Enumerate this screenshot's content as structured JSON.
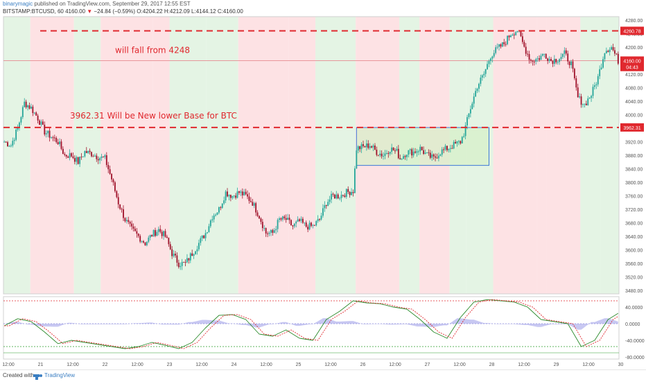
{
  "header": {
    "author": "binarymagic",
    "published": " published on TradingView.com, September 29, 2017 12:55 EST",
    "symbol": "BITSTAMP:BTCUSD, 60",
    "last": "4160.00",
    "change": "−24.84 (−0.59%)",
    "open": "O:4204.22",
    "high": "H:4212.09",
    "low": "L:4144.12",
    "close": "C:4160.00"
  },
  "footer": {
    "created": "Created with",
    "brand": "TradingView"
  },
  "colors": {
    "up": "#26a69a",
    "down": "#a0142c",
    "bg_green": "#e4f4e4",
    "bg_red": "#fde2e4",
    "annotation": "#e0282e",
    "box_fill": "#d6f0c8",
    "box_border": "#3b77d6"
  },
  "chart_data": [
    {
      "type": "candlestick",
      "title": "BITSTAMP:BTCUSD, 60",
      "x_tick_labels": [
        "12:00",
        "21",
        "12:00",
        "22",
        "12:00",
        "23",
        "12:00",
        "24",
        "12:00",
        "25",
        "12:00",
        "26",
        "12:00",
        "27",
        "12:00",
        "28",
        "12:00",
        "29",
        "12:00",
        "30"
      ],
      "y_tick_labels": [
        "3480.00",
        "3520.00",
        "3560.00",
        "3600.00",
        "3640.00",
        "3680.00",
        "3720.00",
        "3760.00",
        "3800.00",
        "3840.00",
        "3880.00",
        "3920.00",
        "3960.00",
        "4000.00",
        "4040.00",
        "4080.00",
        "4120.00",
        "4160.00",
        "4200.00",
        "4240.00",
        "4280.00"
      ],
      "ylim": [
        3470,
        4290
      ],
      "close_path": [
        [
          0,
          3920
        ],
        [
          4,
          3910
        ],
        [
          8,
          3960
        ],
        [
          12,
          4035
        ],
        [
          16,
          4020
        ],
        [
          20,
          3990
        ],
        [
          24,
          3950
        ],
        [
          28,
          3935
        ],
        [
          32,
          3920
        ],
        [
          36,
          3880
        ],
        [
          40,
          3880
        ],
        [
          44,
          3860
        ],
        [
          48,
          3890
        ],
        [
          52,
          3885
        ],
        [
          56,
          3875
        ],
        [
          60,
          3870
        ],
        [
          64,
          3810
        ],
        [
          68,
          3740
        ],
        [
          72,
          3690
        ],
        [
          76,
          3660
        ],
        [
          80,
          3640
        ],
        [
          84,
          3620
        ],
        [
          88,
          3645
        ],
        [
          92,
          3660
        ],
        [
          96,
          3640
        ],
        [
          100,
          3590
        ],
        [
          104,
          3560
        ],
        [
          108,
          3560
        ],
        [
          112,
          3590
        ],
        [
          116,
          3620
        ],
        [
          120,
          3650
        ],
        [
          124,
          3700
        ],
        [
          128,
          3720
        ],
        [
          132,
          3770
        ],
        [
          136,
          3760
        ],
        [
          140,
          3770
        ],
        [
          144,
          3760
        ],
        [
          148,
          3740
        ],
        [
          152,
          3700
        ],
        [
          156,
          3650
        ],
        [
          160,
          3650
        ],
        [
          164,
          3690
        ],
        [
          168,
          3690
        ],
        [
          172,
          3670
        ],
        [
          176,
          3685
        ],
        [
          180,
          3670
        ],
        [
          184,
          3670
        ],
        [
          188,
          3690
        ],
        [
          192,
          3740
        ],
        [
          196,
          3760
        ],
        [
          200,
          3760
        ],
        [
          204,
          3770
        ],
        [
          208,
          3775
        ],
        [
          210,
          3900
        ],
        [
          214,
          3905
        ],
        [
          218,
          3910
        ],
        [
          222,
          3890
        ],
        [
          226,
          3880
        ],
        [
          230,
          3900
        ],
        [
          234,
          3890
        ],
        [
          236,
          3870
        ],
        [
          240,
          3890
        ],
        [
          244,
          3890
        ],
        [
          248,
          3900
        ],
        [
          252,
          3880
        ],
        [
          256,
          3870
        ],
        [
          260,
          3890
        ],
        [
          264,
          3900
        ],
        [
          268,
          3910
        ],
        [
          272,
          3920
        ],
        [
          274,
          3945
        ],
        [
          278,
          4020
        ],
        [
          282,
          4085
        ],
        [
          286,
          4120
        ],
        [
          290,
          4175
        ],
        [
          294,
          4195
        ],
        [
          298,
          4210
        ],
        [
          302,
          4240
        ],
        [
          306,
          4250
        ],
        [
          310,
          4200
        ],
        [
          314,
          4160
        ],
        [
          318,
          4165
        ],
        [
          322,
          4180
        ],
        [
          326,
          4160
        ],
        [
          330,
          4165
        ],
        [
          334,
          4180
        ],
        [
          338,
          4150
        ],
        [
          342,
          4050
        ],
        [
          346,
          4030
        ],
        [
          350,
          4060
        ],
        [
          354,
          4110
        ],
        [
          358,
          4190
        ],
        [
          362,
          4200
        ],
        [
          366,
          4160
        ]
      ],
      "annotations": [
        {
          "text": "will fall from 4248",
          "y": 4248,
          "label": "4260.78"
        },
        {
          "text": "3962.31 Will be New lower Base for BTC",
          "y": 3962.31,
          "label": "3962.31"
        }
      ],
      "price_markers": [
        {
          "label": "4160.00",
          "y": 4160
        },
        {
          "label": "04:43",
          "y": 4141
        }
      ],
      "consolidation_box": {
        "x0": 210,
        "x1": 289,
        "y_top": 3962,
        "y_bottom": 3850
      }
    },
    {
      "type": "oscillator",
      "y_tick_labels": [
        "40.0000",
        "0.0000",
        "-40.0000",
        "-80.0000"
      ],
      "ylim": [
        -85,
        65
      ],
      "upper_band": 55,
      "lower_band": -55,
      "stoch_path": [
        [
          0,
          -5
        ],
        [
          8,
          12
        ],
        [
          16,
          5
        ],
        [
          24,
          -20
        ],
        [
          32,
          -48
        ],
        [
          40,
          -40
        ],
        [
          48,
          -45
        ],
        [
          56,
          -50
        ],
        [
          64,
          -55
        ],
        [
          72,
          -60
        ],
        [
          80,
          -55
        ],
        [
          88,
          -45
        ],
        [
          96,
          -52
        ],
        [
          104,
          -60
        ],
        [
          112,
          -45
        ],
        [
          120,
          -10
        ],
        [
          128,
          20
        ],
        [
          136,
          22
        ],
        [
          144,
          10
        ],
        [
          152,
          -25
        ],
        [
          160,
          -30
        ],
        [
          168,
          -15
        ],
        [
          176,
          -35
        ],
        [
          184,
          -40
        ],
        [
          192,
          10
        ],
        [
          200,
          30
        ],
        [
          208,
          55
        ],
        [
          216,
          50
        ],
        [
          224,
          48
        ],
        [
          232,
          40
        ],
        [
          240,
          35
        ],
        [
          248,
          10
        ],
        [
          256,
          -20
        ],
        [
          264,
          -35
        ],
        [
          272,
          15
        ],
        [
          280,
          52
        ],
        [
          288,
          58
        ],
        [
          296,
          55
        ],
        [
          304,
          52
        ],
        [
          312,
          40
        ],
        [
          320,
          10
        ],
        [
          328,
          5
        ],
        [
          336,
          0
        ],
        [
          344,
          -55
        ],
        [
          352,
          -40
        ],
        [
          360,
          10
        ],
        [
          366,
          25
        ]
      ]
    }
  ]
}
